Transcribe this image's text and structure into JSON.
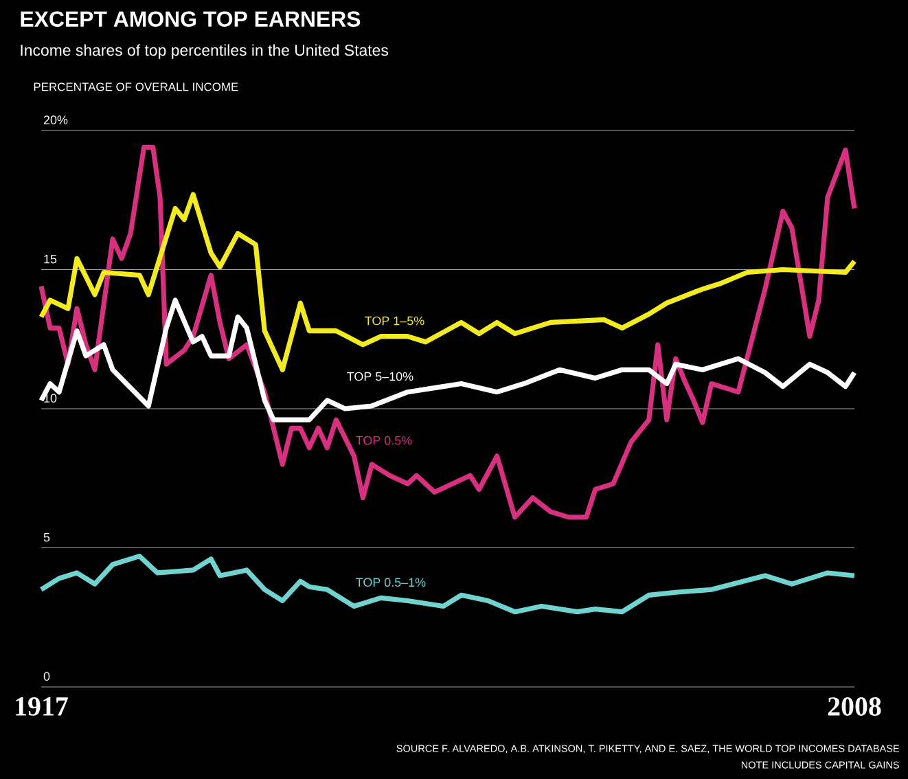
{
  "chart_data": {
    "type": "line",
    "title": "EXCEPT AMONG TOP EARNERS",
    "subtitle": "Income shares of top percentiles in the United States",
    "ylabel": "PERCENTAGE OF OVERALL INCOME",
    "annotations": [
      "SOURCE F. ALVAREDO, A.B. ATKINSON, T. PIKETTY, AND E. SAEZ, THE WORLD TOP INCOMES DATABASE",
      "NOTE INCLUDES CAPITAL GAINS"
    ],
    "xlim": [
      1917,
      2008
    ],
    "xticks": [
      1917,
      2008
    ],
    "ylim": [
      0,
      20
    ],
    "yticks": [
      0,
      5,
      10,
      {
        "value": 15,
        "label": "15"
      },
      {
        "value": 20,
        "label": "20%"
      }
    ],
    "grid": "y",
    "marker": "none",
    "line_style": "solid",
    "series": [
      {
        "name": "TOP 0.5%",
        "color": "#d6307f",
        "x": [
          1917,
          1918,
          1919,
          1920,
          1921,
          1922,
          1923,
          1925,
          1926,
          1927,
          1928.5,
          1929.5,
          1930.3,
          1931,
          1933,
          1934,
          1936,
          1937,
          1938,
          1940,
          1942,
          1944,
          1945,
          1946,
          1947,
          1948,
          1949,
          1950,
          1952,
          1953,
          1954,
          1956,
          1958,
          1959,
          1961,
          1965,
          1966,
          1968,
          1970,
          1972,
          1974,
          1976,
          1978,
          1979,
          1981,
          1983,
          1985,
          1986,
          1987,
          1988,
          1989,
          1990,
          1991,
          1992,
          1995,
          1998,
          2000,
          2001,
          2003,
          2004,
          2005,
          2007,
          2008
        ],
        "values": [
          14.4,
          12.9,
          12.9,
          11.6,
          13.6,
          12.3,
          11.4,
          16.1,
          15.4,
          16.3,
          19.4,
          19.4,
          17.6,
          11.6,
          12.1,
          12.6,
          14.8,
          13.1,
          11.8,
          12.3,
          10.6,
          8.0,
          9.3,
          9.3,
          8.6,
          9.3,
          8.6,
          9.6,
          8.3,
          6.8,
          8.0,
          7.6,
          7.3,
          7.6,
          7.0,
          7.6,
          7.1,
          8.3,
          6.1,
          6.8,
          6.3,
          6.1,
          6.1,
          7.1,
          7.3,
          8.8,
          9.6,
          12.3,
          9.6,
          11.8,
          11.0,
          10.3,
          9.5,
          10.9,
          10.6,
          14.3,
          17.1,
          16.5,
          12.6,
          13.9,
          17.6,
          19.3,
          17.2
        ]
      },
      {
        "name": "TOP 1–5%",
        "color": "#f3ea1f",
        "x": [
          1917,
          1918,
          1920,
          1921,
          1923,
          1924,
          1928,
          1929,
          1932,
          1933,
          1934,
          1936,
          1937,
          1939,
          1941,
          1942,
          1944,
          1946,
          1947,
          1950,
          1953,
          1955,
          1958,
          1960,
          1964,
          1966,
          1968,
          1970,
          1974,
          1980,
          1982,
          1985,
          1987,
          1991,
          1993,
          1996,
          2000,
          2007,
          2008
        ],
        "values": [
          13.3,
          13.9,
          13.6,
          15.4,
          14.1,
          14.9,
          14.8,
          14.1,
          17.2,
          16.8,
          17.7,
          15.6,
          15.1,
          16.3,
          15.9,
          12.8,
          11.4,
          13.8,
          12.8,
          12.8,
          12.3,
          12.6,
          12.6,
          12.4,
          13.1,
          12.7,
          13.1,
          12.7,
          13.1,
          13.2,
          12.9,
          13.4,
          13.8,
          14.3,
          14.5,
          14.9,
          15.0,
          14.9,
          15.3
        ]
      },
      {
        "name": "TOP 5–10%",
        "color": "#ffffff",
        "x": [
          1917,
          1918,
          1919,
          1921,
          1922,
          1924,
          1925,
          1929,
          1931,
          1932,
          1934,
          1935,
          1936,
          1938,
          1939,
          1940,
          1942,
          1943,
          1947,
          1949,
          1951,
          1954,
          1958,
          1962,
          1964,
          1968,
          1971,
          1975,
          1979,
          1982,
          1985,
          1987,
          1988,
          1991,
          1995,
          1998,
          2000,
          2003,
          2005,
          2007,
          2008
        ],
        "values": [
          10.3,
          10.9,
          10.6,
          12.8,
          11.9,
          12.3,
          11.4,
          10.1,
          12.9,
          13.9,
          12.4,
          12.6,
          11.9,
          11.9,
          13.3,
          12.9,
          10.3,
          9.6,
          9.6,
          10.3,
          10.0,
          10.1,
          10.6,
          10.8,
          10.9,
          10.6,
          10.9,
          11.4,
          11.1,
          11.4,
          11.4,
          10.9,
          11.6,
          11.4,
          11.8,
          11.3,
          10.8,
          11.6,
          11.3,
          10.8,
          11.3
        ]
      },
      {
        "name": "TOP 0.5–1%",
        "color": "#6fd3cf",
        "x": [
          1917,
          1919,
          1921,
          1923,
          1925,
          1928,
          1930,
          1934,
          1936,
          1937,
          1940,
          1942,
          1944,
          1946,
          1947,
          1949,
          1952,
          1955,
          1958,
          1962,
          1964,
          1967,
          1970,
          1973,
          1977,
          1979,
          1982,
          1985,
          1988,
          1992,
          1998,
          2001,
          2005,
          2008
        ],
        "values": [
          3.5,
          3.9,
          4.1,
          3.7,
          4.4,
          4.7,
          4.1,
          4.2,
          4.6,
          4.0,
          4.2,
          3.5,
          3.1,
          3.8,
          3.6,
          3.5,
          2.9,
          3.2,
          3.1,
          2.9,
          3.3,
          3.1,
          2.7,
          2.9,
          2.7,
          2.8,
          2.7,
          3.3,
          3.4,
          3.5,
          4.0,
          3.7,
          4.1,
          4.0
        ]
      }
    ]
  }
}
